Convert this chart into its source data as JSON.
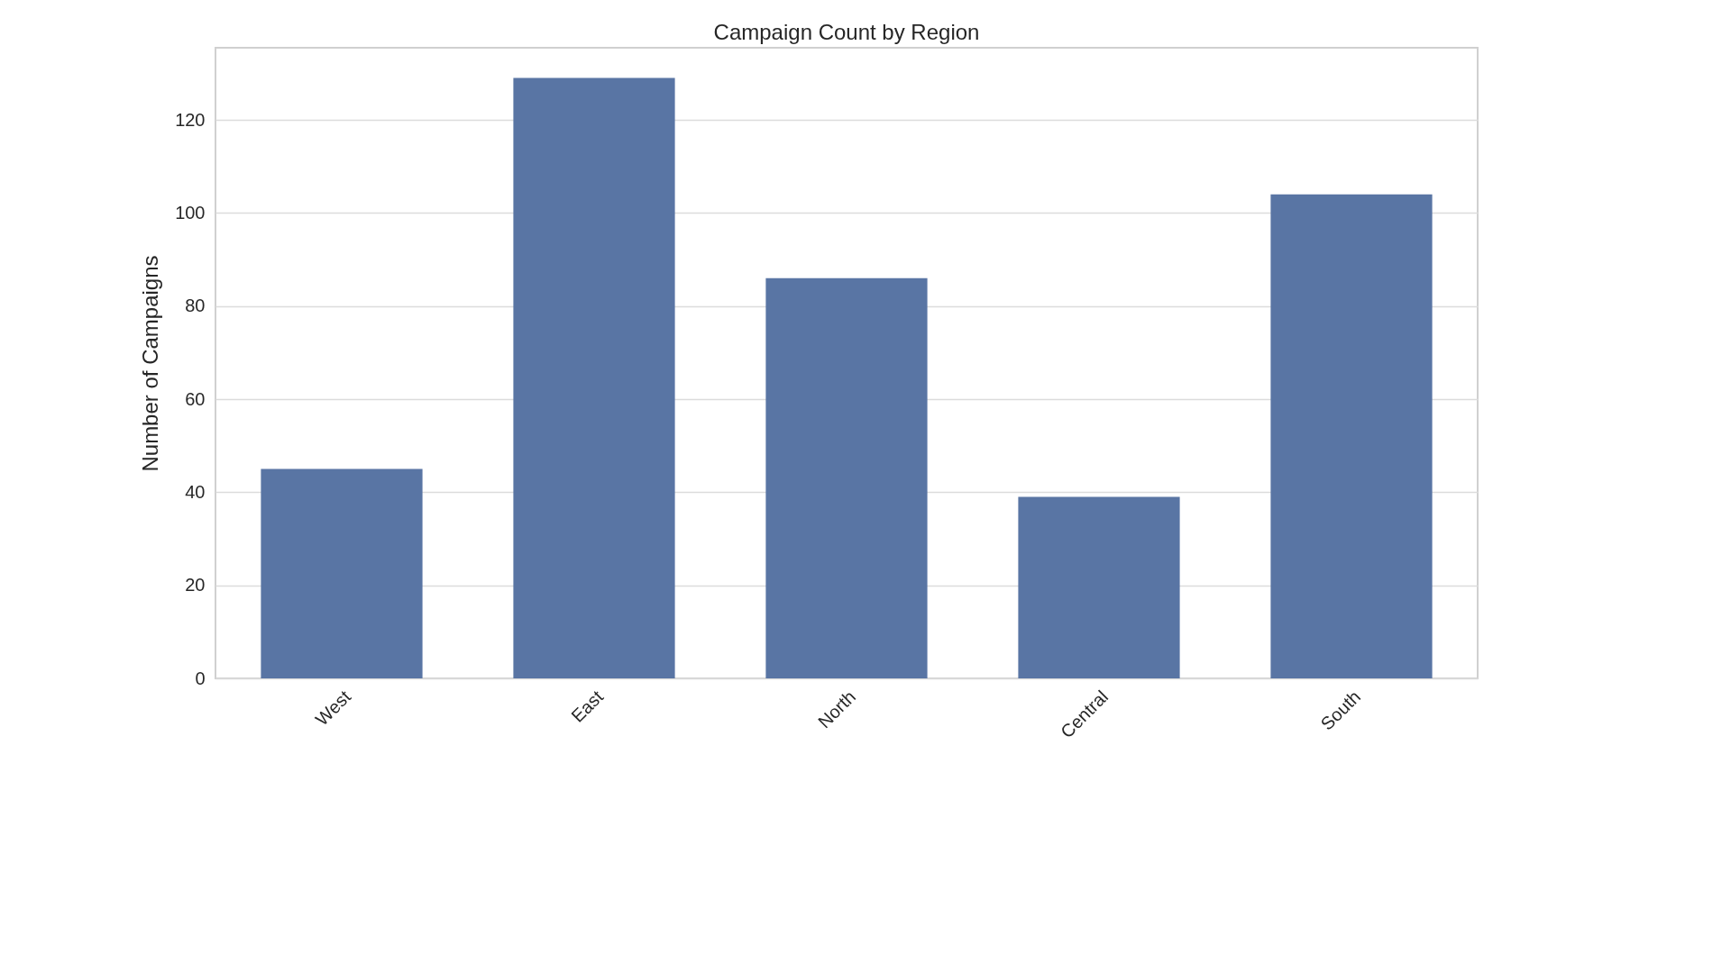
{
  "chart_data": {
    "type": "bar",
    "title": "Campaign Count by Region",
    "ylabel": "Number of Campaigns",
    "categories": [
      "West",
      "East",
      "North",
      "Central",
      "South"
    ],
    "values": [
      45,
      129,
      86,
      39,
      104
    ],
    "color": "#5975a4",
    "ylim": [
      0,
      135.5
    ],
    "yticks": [
      0,
      20,
      40,
      60,
      80,
      100,
      120
    ],
    "grid": "y"
  }
}
